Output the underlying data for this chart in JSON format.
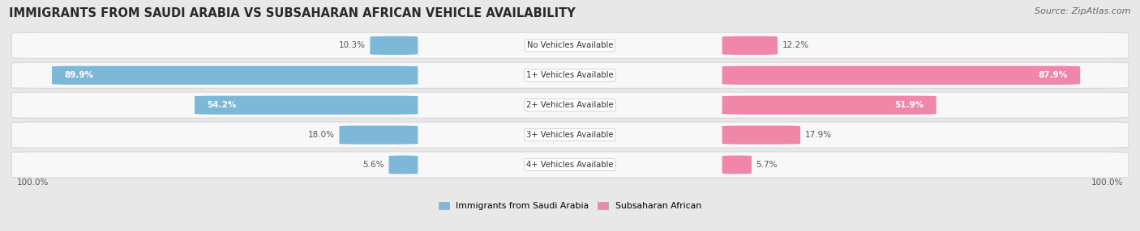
{
  "title": "IMMIGRANTS FROM SAUDI ARABIA VS SUBSAHARAN AFRICAN VEHICLE AVAILABILITY",
  "source": "Source: ZipAtlas.com",
  "categories": [
    "No Vehicles Available",
    "1+ Vehicles Available",
    "2+ Vehicles Available",
    "3+ Vehicles Available",
    "4+ Vehicles Available"
  ],
  "left_values": [
    10.3,
    89.9,
    54.2,
    18.0,
    5.6
  ],
  "right_values": [
    12.2,
    87.9,
    51.9,
    17.9,
    5.7
  ],
  "left_color": "#7eb8d9",
  "right_color": "#f086a8",
  "left_label": "Immigrants from Saudi Arabia",
  "right_label": "Subsaharan African",
  "max_value": 100.0,
  "bg_color": "#e8e8e8",
  "row_bg_color": "#f5f5f5",
  "title_fontsize": 10.5,
  "source_fontsize": 8
}
